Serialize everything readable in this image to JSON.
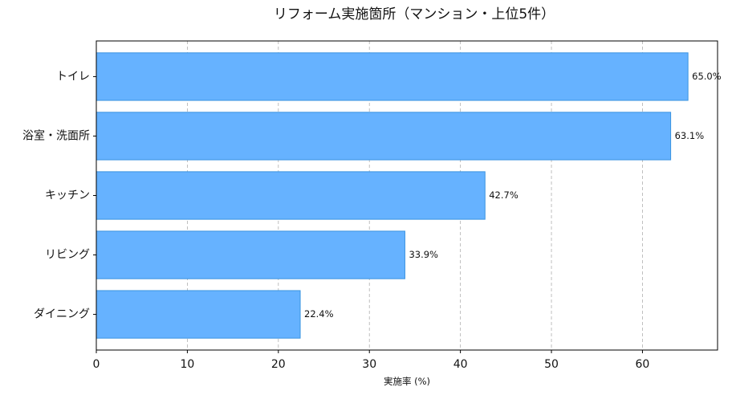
{
  "chart_data": {
    "type": "bar",
    "orientation": "horizontal",
    "title": "リフォーム実施箇所（マンション・上位5件）",
    "xlabel": "実施率 (%)",
    "ylabel": "",
    "categories": [
      "トイレ",
      "浴室・洗面所",
      "キッチン",
      "リビング",
      "ダイニング"
    ],
    "values": [
      65.0,
      63.1,
      42.7,
      33.9,
      22.4
    ],
    "value_labels": [
      "65.0%",
      "63.1%",
      "42.7%",
      "33.9%",
      "22.4%"
    ],
    "xlim": [
      0,
      68.25
    ],
    "xticks": [
      0,
      10,
      20,
      30,
      40,
      50,
      60
    ],
    "xtick_labels": [
      "0",
      "10",
      "20",
      "30",
      "40",
      "50",
      "60"
    ],
    "grid": "x",
    "colors": {
      "bar_fill": "#66b2ff",
      "bar_edge": "#3a93e0",
      "grid": "#b0b0b0",
      "axis": "#000000",
      "text": "#111111"
    }
  }
}
